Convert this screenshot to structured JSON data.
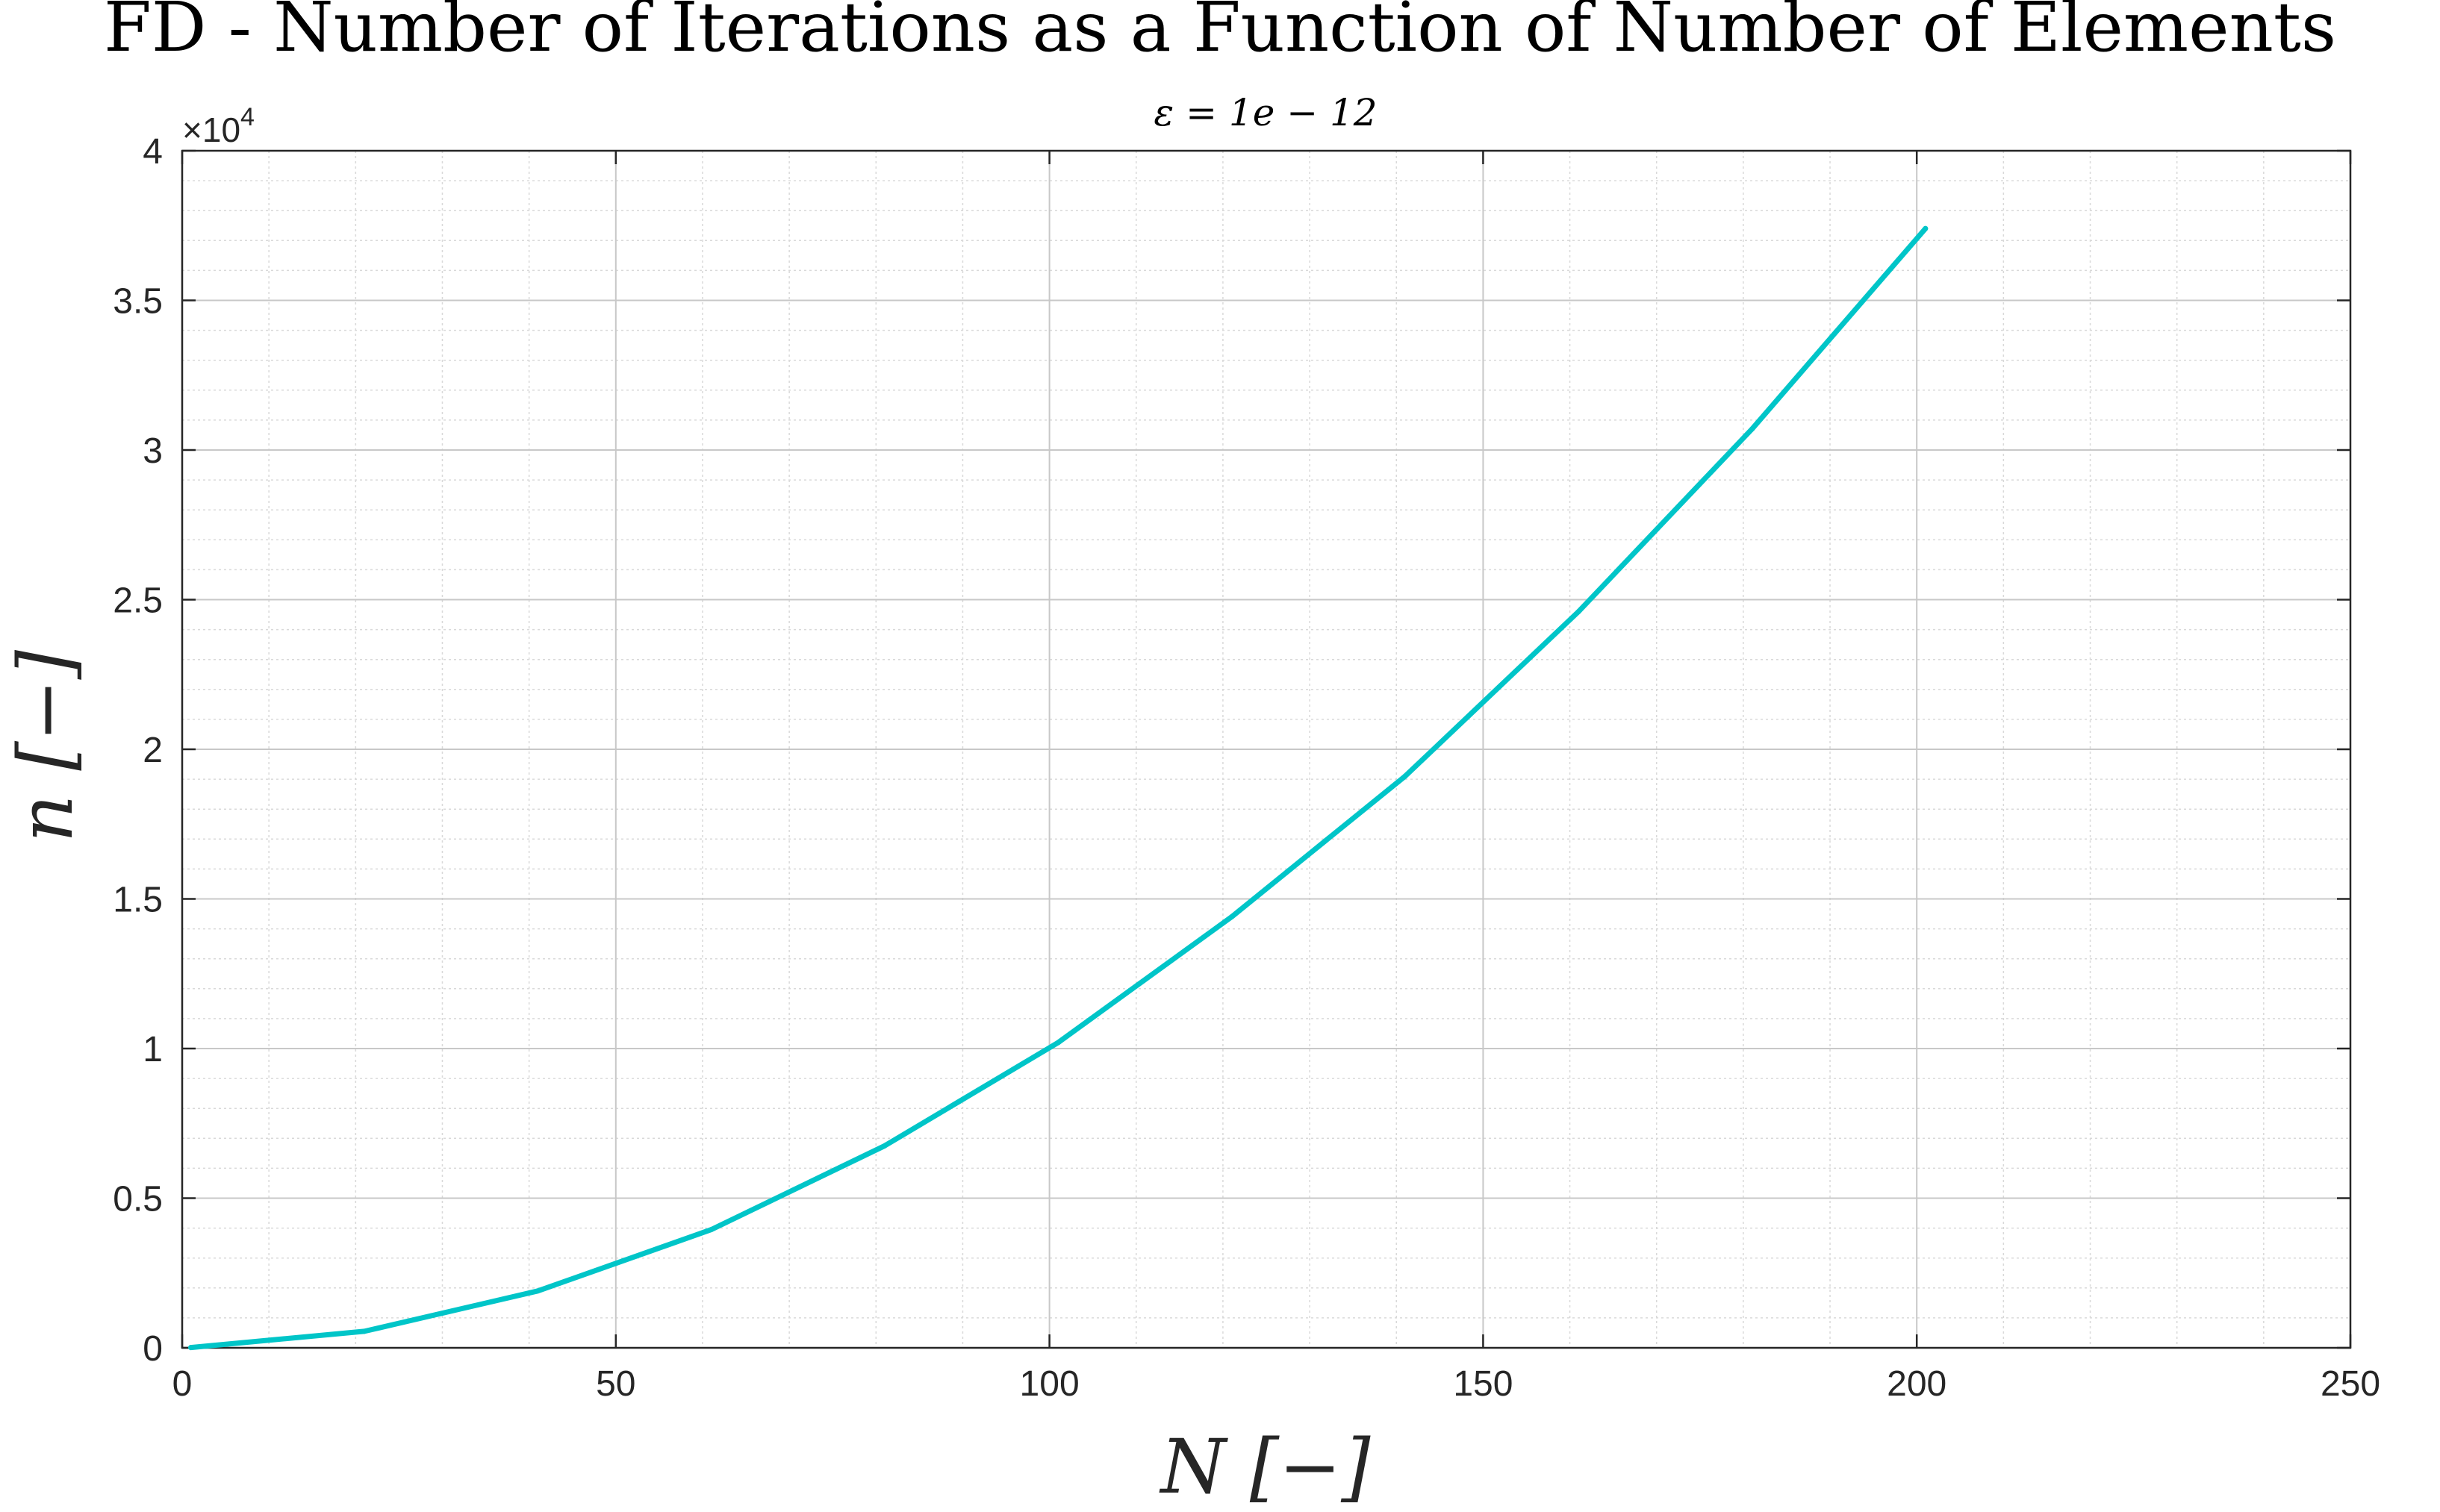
{
  "chart_data": {
    "type": "line",
    "title": "FD - Number of Iterations as a Function of Number of Elements",
    "subtitle": "ε = 1e − 12",
    "xlabel": "N [−]",
    "ylabel": "n [−]",
    "y_exponent_label": "×10",
    "y_exponent_power": "4",
    "xlim": [
      0,
      250
    ],
    "ylim": [
      0,
      40000
    ],
    "x_ticks": [
      0,
      50,
      100,
      150,
      200,
      250
    ],
    "x_tick_labels": [
      "0",
      "50",
      "100",
      "150",
      "200",
      "250"
    ],
    "y_ticks": [
      0,
      5000,
      10000,
      15000,
      20000,
      25000,
      30000,
      35000,
      40000
    ],
    "y_tick_labels": [
      "0",
      "0.5",
      "1",
      "1.5",
      "2",
      "2.5",
      "3",
      "3.5",
      "4"
    ],
    "grid": true,
    "minor_grid": true,
    "series": [
      {
        "color": "#00c5c8",
        "x": [
          1,
          21,
          41,
          61,
          81,
          101,
          121,
          141,
          161,
          181,
          201
        ],
        "y": [
          10,
          550,
          1900,
          3950,
          6750,
          10200,
          14400,
          19100,
          24600,
          30700,
          37400
        ]
      }
    ]
  }
}
